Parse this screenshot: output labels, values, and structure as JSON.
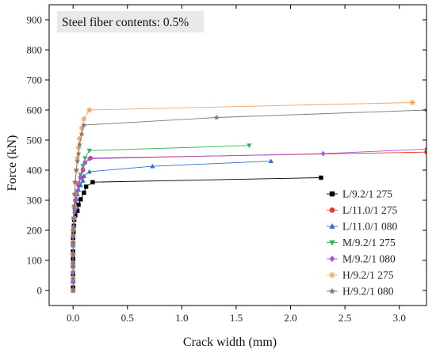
{
  "chart_data": {
    "type": "line",
    "title": "",
    "annotation": "Steel fiber contents: 0.5%",
    "xlabel": "Crack width (mm)",
    "ylabel": "Force (kN)",
    "xlim": [
      -0.22,
      3.25
    ],
    "ylim": [
      -50,
      950
    ],
    "xticks": [
      0.0,
      0.5,
      1.0,
      1.5,
      2.0,
      2.5,
      3.0
    ],
    "yticks": [
      0,
      100,
      200,
      300,
      400,
      500,
      600,
      700,
      800,
      900
    ],
    "xtick_labels": [
      "0.0",
      "0.5",
      "1.0",
      "1.5",
      "2.0",
      "2.5",
      "3.0"
    ],
    "ytick_labels": [
      "0",
      "100",
      "200",
      "300",
      "400",
      "500",
      "600",
      "700",
      "800",
      "900"
    ],
    "grid": false,
    "legend_position": "bottom-right",
    "series": [
      {
        "name": "L/9.2/1 275",
        "color": "#000000",
        "marker": "square",
        "points": [
          [
            0,
            0
          ],
          [
            0,
            10
          ],
          [
            0,
            30
          ],
          [
            0,
            55
          ],
          [
            0,
            80
          ],
          [
            0,
            105
          ],
          [
            0,
            130
          ],
          [
            0,
            155
          ],
          [
            0,
            175
          ],
          [
            0.005,
            195
          ],
          [
            0.008,
            215
          ],
          [
            0.01,
            235
          ],
          [
            0.02,
            250
          ],
          [
            0.04,
            265
          ],
          [
            0.05,
            285
          ],
          [
            0.07,
            303
          ],
          [
            0.1,
            325
          ],
          [
            0.12,
            345
          ],
          [
            0.18,
            360
          ],
          [
            2.28,
            375
          ]
        ]
      },
      {
        "name": "L/11.0/1 275",
        "color": "#e8392e",
        "marker": "circle",
        "points": [
          [
            0,
            0
          ],
          [
            0,
            30
          ],
          [
            0,
            60
          ],
          [
            0,
            90
          ],
          [
            0,
            120
          ],
          [
            0,
            150
          ],
          [
            0,
            180
          ],
          [
            0.005,
            210
          ],
          [
            0.01,
            240
          ],
          [
            0.015,
            270
          ],
          [
            0.02,
            300
          ],
          [
            0.03,
            325
          ],
          [
            0.05,
            350
          ],
          [
            0.07,
            375
          ],
          [
            0.09,
            400
          ],
          [
            0.11,
            425
          ],
          [
            0.16,
            440
          ],
          [
            3.25,
            460
          ]
        ]
      },
      {
        "name": "L/11.0/1 080",
        "color": "#2f6fd6",
        "marker": "triangle-up",
        "points": [
          [
            0,
            0
          ],
          [
            0,
            30
          ],
          [
            0,
            60
          ],
          [
            0,
            90
          ],
          [
            0,
            120
          ],
          [
            0,
            150
          ],
          [
            0,
            180
          ],
          [
            0.005,
            210
          ],
          [
            0.01,
            240
          ],
          [
            0.015,
            265
          ],
          [
            0.02,
            285
          ],
          [
            0.03,
            305
          ],
          [
            0.04,
            320
          ],
          [
            0.05,
            335
          ],
          [
            0.07,
            350
          ],
          [
            0.09,
            365
          ],
          [
            0.1,
            380
          ],
          [
            0.15,
            395
          ],
          [
            0.73,
            413
          ],
          [
            1.82,
            430
          ]
        ]
      },
      {
        "name": "M/9.2/1 275",
        "color": "#2fb35a",
        "marker": "triangle-down",
        "points": [
          [
            0,
            0
          ],
          [
            0,
            30
          ],
          [
            0,
            60
          ],
          [
            0,
            90
          ],
          [
            0,
            120
          ],
          [
            0,
            150
          ],
          [
            0,
            180
          ],
          [
            0.005,
            210
          ],
          [
            0.01,
            240
          ],
          [
            0.02,
            270
          ],
          [
            0.03,
            300
          ],
          [
            0.04,
            330
          ],
          [
            0.05,
            355
          ],
          [
            0.07,
            385
          ],
          [
            0.09,
            415
          ],
          [
            0.11,
            440
          ],
          [
            0.15,
            465
          ],
          [
            1.62,
            482
          ]
        ]
      },
      {
        "name": "M/9.2/1 080",
        "color": "#a259d9",
        "marker": "diamond",
        "points": [
          [
            0,
            0
          ],
          [
            0,
            30
          ],
          [
            0,
            60
          ],
          [
            0,
            90
          ],
          [
            0,
            120
          ],
          [
            0,
            150
          ],
          [
            0,
            180
          ],
          [
            0.005,
            210
          ],
          [
            0.01,
            240
          ],
          [
            0.02,
            270
          ],
          [
            0.03,
            300
          ],
          [
            0.04,
            330
          ],
          [
            0.05,
            355
          ],
          [
            0.07,
            380
          ],
          [
            0.09,
            405
          ],
          [
            0.11,
            425
          ],
          [
            0.15,
            438
          ],
          [
            2.3,
            455
          ],
          [
            3.25,
            470
          ]
        ]
      },
      {
        "name": "H/9.2/1 275",
        "color": "#f5a462",
        "marker": "star",
        "points": [
          [
            0,
            0
          ],
          [
            0,
            40
          ],
          [
            0,
            80
          ],
          [
            0,
            120
          ],
          [
            0,
            160
          ],
          [
            0,
            200
          ],
          [
            0.005,
            240
          ],
          [
            0.01,
            280
          ],
          [
            0.015,
            320
          ],
          [
            0.02,
            360
          ],
          [
            0.03,
            400
          ],
          [
            0.04,
            440
          ],
          [
            0.05,
            475
          ],
          [
            0.06,
            505
          ],
          [
            0.08,
            540
          ],
          [
            0.1,
            570
          ],
          [
            0.15,
            600
          ],
          [
            3.12,
            625
          ]
        ]
      },
      {
        "name": "H/9.2/1 080",
        "color": "#7a7a7a",
        "marker": "star6",
        "points": [
          [
            0,
            0
          ],
          [
            0,
            40
          ],
          [
            0,
            80
          ],
          [
            0,
            120
          ],
          [
            0,
            160
          ],
          [
            0,
            200
          ],
          [
            0.005,
            240
          ],
          [
            0.01,
            280
          ],
          [
            0.015,
            320
          ],
          [
            0.02,
            360
          ],
          [
            0.03,
            400
          ],
          [
            0.04,
            430
          ],
          [
            0.05,
            455
          ],
          [
            0.06,
            485
          ],
          [
            0.08,
            520
          ],
          [
            0.1,
            550
          ],
          [
            1.32,
            575
          ],
          [
            3.25,
            600
          ]
        ]
      }
    ]
  }
}
